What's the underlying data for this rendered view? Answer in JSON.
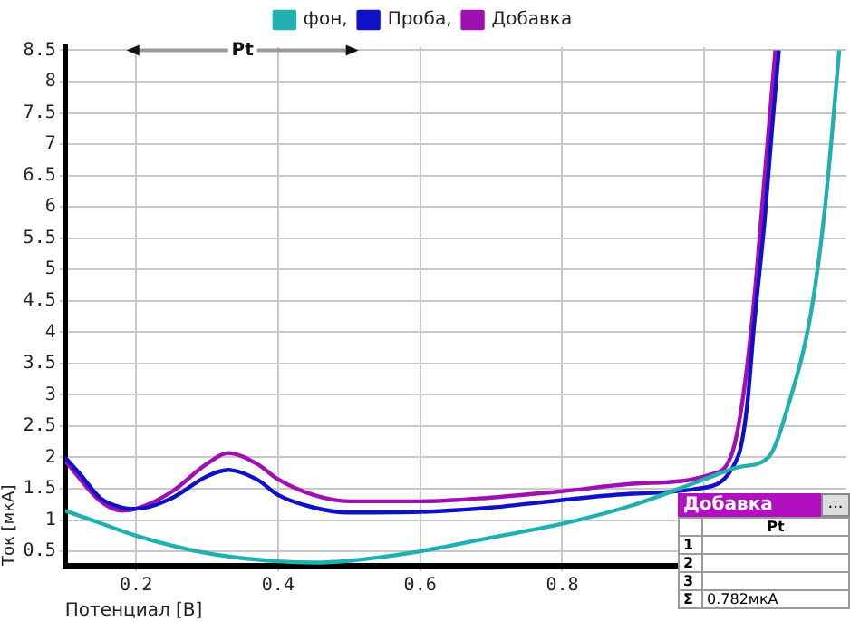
{
  "chart_data": {
    "type": "line",
    "xlabel": "Потенциал [В]",
    "ylabel": "Ток [мкА]",
    "xlim": [
      0.1,
      1.2
    ],
    "xticks": [
      0.2,
      0.4,
      0.6,
      0.8,
      {
        "value": 1,
        "label": null
      }
    ],
    "ylim": [
      0.27,
      8.55
    ],
    "yticks": [
      0.5,
      1,
      1.5,
      2,
      2.5,
      3,
      3.5,
      4,
      4.5,
      5,
      5.5,
      6,
      6.5,
      7,
      7.5,
      8,
      8.5
    ],
    "grid": true,
    "legend": "top",
    "marker": "none",
    "line_style": "solid",
    "annotations": [
      {
        "text": "Pt",
        "x": 0.35,
        "y": 8.5
      },
      "Добавка",
      "...",
      "Pt",
      "1",
      "2",
      "3",
      "Σ",
      "0.782мкА"
    ],
    "series": [
      {
        "name": "фон,",
        "color": "#20b0b0",
        "x": [
          0.1,
          0.15,
          0.2,
          0.3,
          0.4,
          0.45,
          0.5,
          0.6,
          0.7,
          0.8,
          0.9,
          1.0,
          1.05,
          1.09,
          1.12,
          1.15,
          1.17,
          1.19
        ],
        "values": [
          1.15,
          0.95,
          0.75,
          0.47,
          0.34,
          0.32,
          0.35,
          0.5,
          0.72,
          0.94,
          1.24,
          1.65,
          1.85,
          2.0,
          2.9,
          4.3,
          6.0,
          8.5
        ]
      },
      {
        "name": "Проба,",
        "color": "#1010c8",
        "x": [
          0.1,
          0.12,
          0.15,
          0.18,
          0.2,
          0.25,
          0.3,
          0.33,
          0.37,
          0.4,
          0.45,
          0.5,
          0.6,
          0.7,
          0.8,
          0.9,
          0.99,
          1.047,
          1.06,
          1.07,
          1.085,
          1.095,
          1.105
        ],
        "values": [
          2.0,
          1.75,
          1.35,
          1.2,
          1.18,
          1.35,
          1.7,
          1.8,
          1.65,
          1.4,
          1.2,
          1.12,
          1.13,
          1.2,
          1.32,
          1.42,
          1.5,
          2.0,
          2.8,
          4.1,
          5.8,
          7.2,
          8.5
        ]
      },
      {
        "name": "Добавка",
        "color": "#a010b0",
        "x": [
          0.1,
          0.15,
          0.18,
          0.2,
          0.25,
          0.3,
          0.33,
          0.37,
          0.4,
          0.45,
          0.5,
          0.6,
          0.7,
          0.8,
          0.9,
          1.01,
          1.04,
          1.055,
          1.07,
          1.085,
          1.1
        ],
        "values": [
          1.95,
          1.3,
          1.15,
          1.18,
          1.45,
          1.9,
          2.07,
          1.9,
          1.65,
          1.4,
          1.3,
          1.3,
          1.36,
          1.46,
          1.58,
          1.73,
          2.1,
          3.0,
          4.5,
          6.5,
          8.5
        ]
      }
    ]
  }
}
